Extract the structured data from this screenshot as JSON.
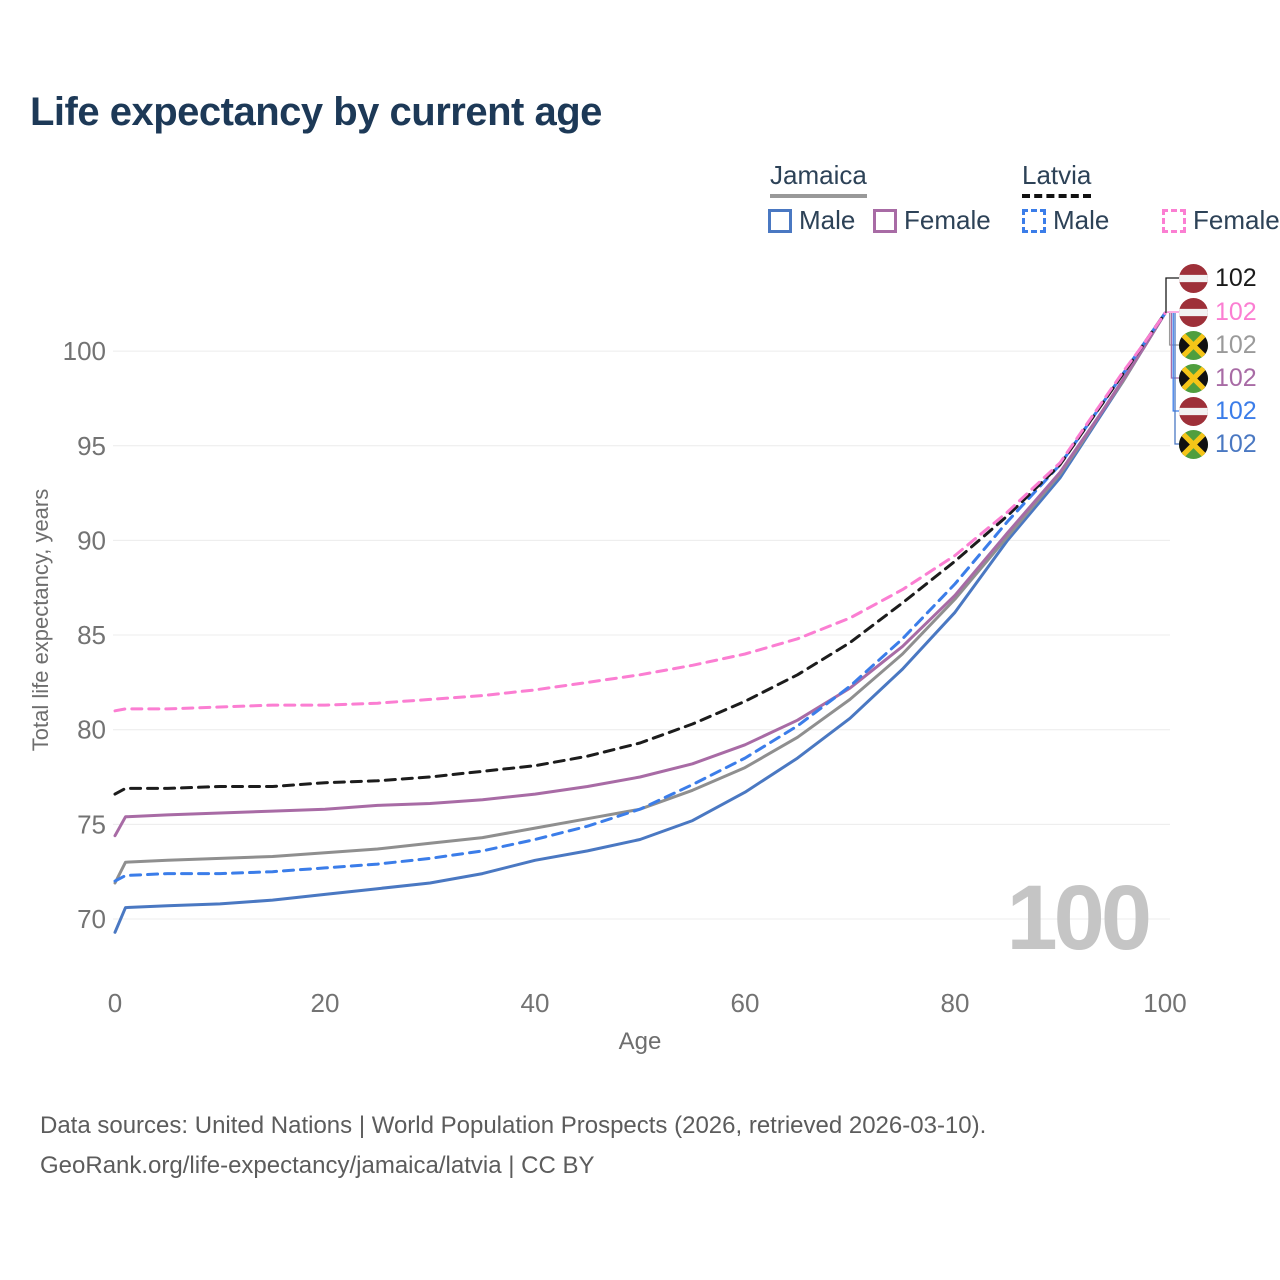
{
  "title": "Life expectancy by current age",
  "legend": {
    "groups": [
      {
        "label": "Jamaica",
        "line_style": "solid",
        "line_color": "#999999"
      },
      {
        "label": "Latvia",
        "line_style": "dashed",
        "line_color": "#111111"
      }
    ],
    "items": [
      {
        "country": "Jamaica",
        "label": "Male",
        "style": "solid",
        "color": "#4a78c2"
      },
      {
        "country": "Jamaica",
        "label": "Female",
        "style": "solid",
        "color": "#a86ba5"
      },
      {
        "country": "Latvia",
        "label": "Male",
        "style": "dashed",
        "color": "#3b7de9"
      },
      {
        "country": "Latvia",
        "label": "Female",
        "style": "dashed",
        "color": "#fb7ed2"
      }
    ]
  },
  "watermark_current_age": "100",
  "footer": {
    "line1": "Data sources: United Nations | World Population Prospects (2026, retrieved 2026-03-10).",
    "line2": "GeoRank.org/life-expectancy/jamaica/latvia | CC BY"
  },
  "chart_data": {
    "type": "line",
    "title": "Life expectancy by current age",
    "xlabel": "Age",
    "ylabel": "Total life expectancy, years",
    "xlim": [
      0,
      100
    ],
    "ylim": [
      68,
      103
    ],
    "xticks": [
      0,
      20,
      40,
      60,
      80,
      100
    ],
    "yticks": [
      70,
      75,
      80,
      85,
      90,
      95,
      100
    ],
    "grid": "horizontal-only",
    "legend_position": "top-right",
    "x": [
      0,
      1,
      5,
      10,
      15,
      20,
      25,
      30,
      35,
      40,
      45,
      50,
      55,
      60,
      65,
      70,
      75,
      80,
      85,
      90,
      92,
      94,
      96,
      98,
      100
    ],
    "series": [
      {
        "name": "Jamaica Male",
        "country": "Jamaica",
        "sex": "male",
        "style": "solid",
        "color": "#4a78c2",
        "values": [
          69.3,
          70.6,
          70.7,
          70.8,
          71.0,
          71.3,
          71.6,
          71.9,
          72.4,
          73.1,
          73.6,
          74.2,
          75.2,
          76.7,
          78.5,
          80.6,
          83.2,
          86.2,
          90.0,
          93.3,
          95.0,
          96.7,
          98.4,
          100.2,
          102
        ]
      },
      {
        "name": "Jamaica Both sexes",
        "country": "Jamaica",
        "sex": "all",
        "style": "solid",
        "color": "#8f8f8f",
        "values": [
          71.9,
          73.0,
          73.1,
          73.2,
          73.3,
          73.5,
          73.7,
          74.0,
          74.3,
          74.8,
          75.3,
          75.8,
          76.8,
          78.0,
          79.6,
          81.6,
          84.0,
          86.9,
          90.2,
          93.5,
          95.1,
          96.8,
          98.4,
          100.2,
          102
        ]
      },
      {
        "name": "Jamaica Female",
        "country": "Jamaica",
        "sex": "female",
        "style": "solid",
        "color": "#a86ba5",
        "values": [
          74.4,
          75.4,
          75.5,
          75.6,
          75.7,
          75.8,
          76.0,
          76.1,
          76.3,
          76.6,
          77.0,
          77.5,
          78.2,
          79.2,
          80.5,
          82.2,
          84.4,
          87.1,
          90.4,
          93.6,
          95.2,
          96.8,
          98.5,
          100.2,
          102
        ]
      },
      {
        "name": "Latvia Male",
        "country": "Latvia",
        "sex": "male",
        "style": "dashed",
        "color": "#3b7de9",
        "values": [
          72.0,
          72.3,
          72.4,
          72.4,
          72.5,
          72.7,
          72.9,
          73.2,
          73.6,
          74.2,
          74.9,
          75.8,
          77.1,
          78.5,
          80.2,
          82.3,
          84.8,
          87.7,
          91.0,
          94.0,
          95.6,
          97.2,
          98.8,
          100.4,
          102
        ]
      },
      {
        "name": "Latvia Both sexes",
        "country": "Latvia",
        "sex": "all",
        "style": "dashed",
        "color": "#1c1c1c",
        "values": [
          76.6,
          76.9,
          76.9,
          77.0,
          77.0,
          77.2,
          77.3,
          77.5,
          77.8,
          78.1,
          78.6,
          79.3,
          80.3,
          81.5,
          82.9,
          84.6,
          86.7,
          88.9,
          91.3,
          94.0,
          95.6,
          97.2,
          98.8,
          100.4,
          102
        ]
      },
      {
        "name": "Latvia Female",
        "country": "Latvia",
        "sex": "female",
        "style": "dashed",
        "color": "#fb7ed2",
        "values": [
          81.0,
          81.1,
          81.1,
          81.2,
          81.3,
          81.3,
          81.4,
          81.6,
          81.8,
          82.1,
          82.5,
          82.9,
          83.4,
          84.0,
          84.8,
          85.9,
          87.4,
          89.2,
          91.5,
          94.1,
          95.7,
          97.3,
          98.9,
          100.4,
          102
        ]
      }
    ],
    "end_labels": [
      {
        "flag": "latvia",
        "series": "Latvia Both sexes",
        "text": "102",
        "color": "#1a1a1a"
      },
      {
        "flag": "latvia",
        "series": "Latvia Female",
        "text": "102",
        "color": "#fb7ed2"
      },
      {
        "flag": "jamaica",
        "series": "Jamaica Both sexes",
        "text": "102",
        "color": "#9a9a9a"
      },
      {
        "flag": "jamaica",
        "series": "Jamaica Female",
        "text": "102",
        "color": "#a86ba5"
      },
      {
        "flag": "latvia",
        "series": "Latvia Male",
        "text": "102",
        "color": "#3b7de9"
      },
      {
        "flag": "jamaica",
        "series": "Jamaica Male",
        "text": "102",
        "color": "#4a78c2"
      }
    ]
  }
}
